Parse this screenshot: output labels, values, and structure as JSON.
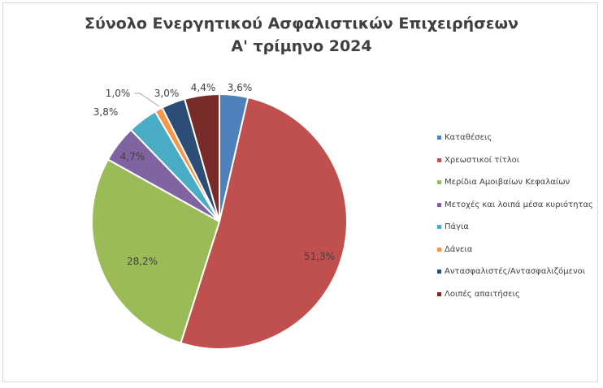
{
  "chart_data": {
    "type": "pie",
    "title": [
      "Σύνολο Ενεργητικού Ασφαλιστικών Επιχειρήσεων",
      "Α' τρίμηνο 2024"
    ],
    "categories": [
      "Καταθέσεις",
      "Χρεωστικοί  τίτλοι",
      "Μερίδια Αμοιβαίων Κεφαλαίων",
      "Μετοχές και λοιπά μέσα κυριότητας",
      "Πάγια",
      "Δάνεια",
      "Αντασφαλιστές/Αντασφαλιζόμενοι",
      "Λοιπές απαιτήσεις"
    ],
    "values": [
      3.6,
      51.3,
      28.2,
      4.7,
      3.8,
      1.0,
      3.0,
      4.4
    ],
    "labels": [
      "3,6%",
      "51,3%",
      "28,2%",
      "4,7%",
      "3,8%",
      "1,0%",
      "3,0%",
      "4,4%"
    ],
    "colors": [
      "#4f81bd",
      "#c0504d",
      "#9bbb59",
      "#8064a2",
      "#4bacc6",
      "#f79646",
      "#2c4d75",
      "#772c2a"
    ],
    "legend_position": "right"
  }
}
